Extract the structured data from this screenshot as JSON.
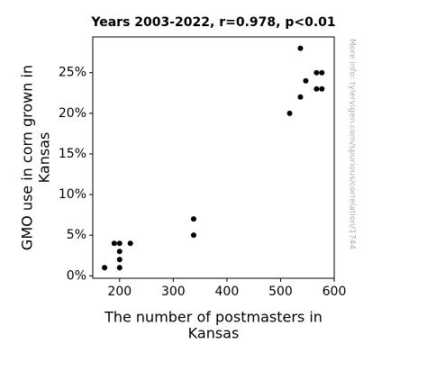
{
  "chart_data": {
    "type": "scatter",
    "title": "Years 2003-2022, r=0.978, p<0.01",
    "xlabel": [
      "The number of postmasters in",
      "Kansas"
    ],
    "ylabel": [
      "GMO use in corn grown in",
      "Kansas"
    ],
    "watermark": "More info: tylervigen.com/spurious/correlation/1744",
    "color": "#000000",
    "x": [
      172,
      190,
      200,
      200,
      200,
      200,
      220,
      338,
      338,
      517,
      537,
      537,
      547,
      567,
      577,
      567,
      577
    ],
    "values": [
      1,
      4,
      4,
      3,
      2,
      1,
      4,
      7,
      5,
      20,
      22,
      28,
      24,
      25,
      25,
      23,
      23
    ],
    "xlim": [
      150,
      600
    ],
    "xticks": [
      200,
      300,
      400,
      500,
      600
    ],
    "ylim": [
      -0.3,
      29.4
    ],
    "yticks": [
      {
        "value": 0,
        "label": "0%"
      },
      {
        "value": 5,
        "label": "5%"
      },
      {
        "value": 10,
        "label": "10%"
      },
      {
        "value": 15,
        "label": "15%"
      },
      {
        "value": 20,
        "label": "20%"
      },
      {
        "value": 25,
        "label": "25%"
      }
    ],
    "grid": false
  }
}
